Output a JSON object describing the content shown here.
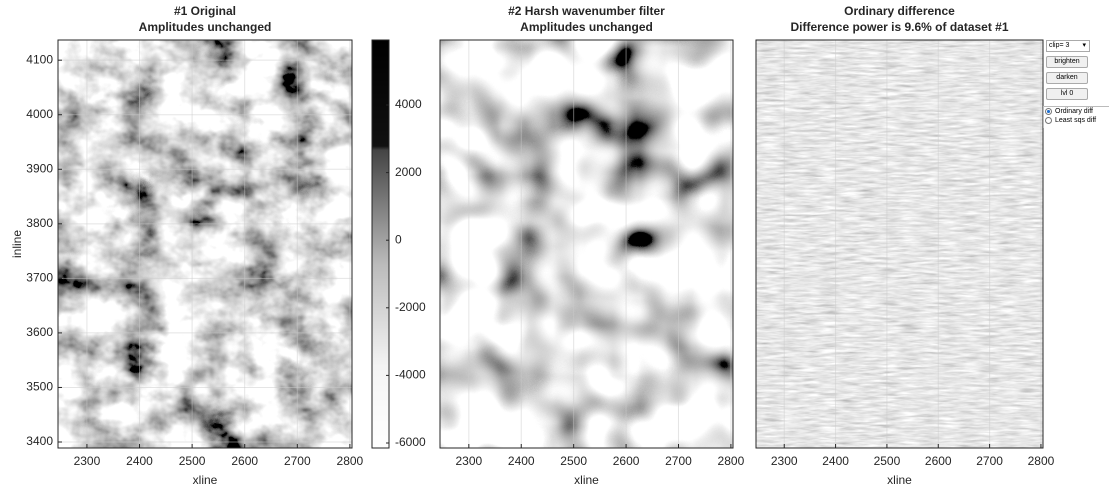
{
  "panels": [
    {
      "title": [
        "#1 Original",
        "Amplitudes unchanged"
      ],
      "xlabel": "xline",
      "ylabel": "inline",
      "xlim": [
        2245,
        2804
      ],
      "ylim": [
        3389,
        4137
      ],
      "xticks": [
        2300,
        2400,
        2500,
        2600,
        2700,
        2800
      ],
      "yticks": [
        3400,
        3500,
        3600,
        3700,
        3800,
        3900,
        4000,
        4100
      ],
      "grid": true
    },
    {
      "title": [
        "#2 Harsh wavenumber filter",
        "Amplitudes unchanged"
      ],
      "xlabel": "xline",
      "xlim": [
        2245,
        2804
      ],
      "ylim": [
        3389,
        4137
      ],
      "xticks": [
        2300,
        2400,
        2500,
        2600,
        2700,
        2800
      ],
      "grid": true
    },
    {
      "title": [
        "Ordinary difference",
        "Difference power is 9.6% of dataset #1"
      ],
      "xlabel": "xline",
      "xlim": [
        2245,
        2804
      ],
      "ylim": [
        3389,
        4137
      ],
      "xticks": [
        2300,
        2400,
        2500,
        2600,
        2700,
        2800
      ],
      "grid": true
    }
  ],
  "colorbar": {
    "lim": [
      -6148,
      5923
    ],
    "ticks": [
      -6000,
      -4000,
      -2000,
      0,
      2000,
      4000
    ]
  },
  "controls": {
    "popup": "clip= 3",
    "buttons": [
      "brighten",
      "darken",
      "lvl 0"
    ],
    "radios": [
      "Ordinary diff",
      "Least sqs diff"
    ],
    "selected": 0
  }
}
